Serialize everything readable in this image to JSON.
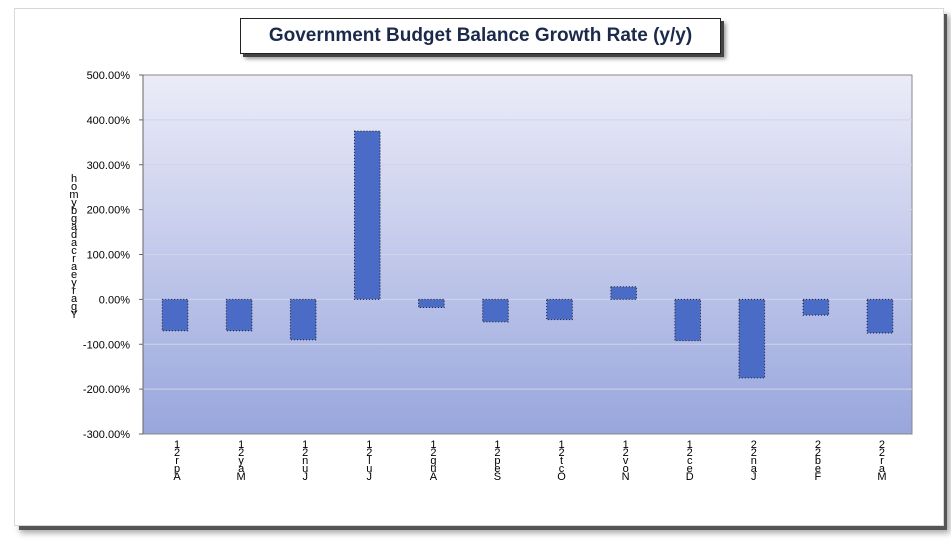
{
  "chart_data": {
    "type": "bar",
    "title": "Government Budget Balance Growth Rate (y/y)",
    "ylabel": "h o m y b g a d a c r a e y r a g Y",
    "xlabel": "",
    "ylim": [
      -300,
      500
    ],
    "yticks": [
      500,
      400,
      300,
      200,
      100,
      0,
      -100,
      -200,
      -300
    ],
    "ytick_labels": [
      "500.00%",
      "400.00%",
      "300.00%",
      "200.00%",
      "100.00%",
      "0.00%",
      "-100.00%",
      "-200.00%",
      "-300.00%"
    ],
    "categories": [
      [
        "1",
        "2",
        "r",
        "p",
        "A"
      ],
      [
        "1",
        "2",
        "y",
        "a",
        "M"
      ],
      [
        "1",
        "2",
        "n",
        "u",
        "J"
      ],
      [
        "1",
        "2",
        "l",
        "u",
        "J"
      ],
      [
        "1",
        "2",
        "g",
        "u",
        "A"
      ],
      [
        "1",
        "2",
        "p",
        "e",
        "S"
      ],
      [
        "1",
        "2",
        "t",
        "c",
        "O"
      ],
      [
        "1",
        "2",
        "v",
        "o",
        "N"
      ],
      [
        "1",
        "2",
        "c",
        "e",
        "D"
      ],
      [
        "2",
        "2",
        "n",
        "a",
        "J"
      ],
      [
        "2",
        "2",
        "b",
        "e",
        "F"
      ],
      [
        "2",
        "2",
        "r",
        "a",
        "M"
      ]
    ],
    "values": [
      -70,
      -70,
      -90,
      375,
      -18,
      -50,
      -45,
      28,
      -92,
      -175,
      -35,
      -75
    ],
    "grid": true,
    "legend": "none",
    "colors": {
      "bar": "#4a6bc6",
      "plot_top": "#ececf8",
      "plot_bottom": "#98a6dd"
    }
  }
}
